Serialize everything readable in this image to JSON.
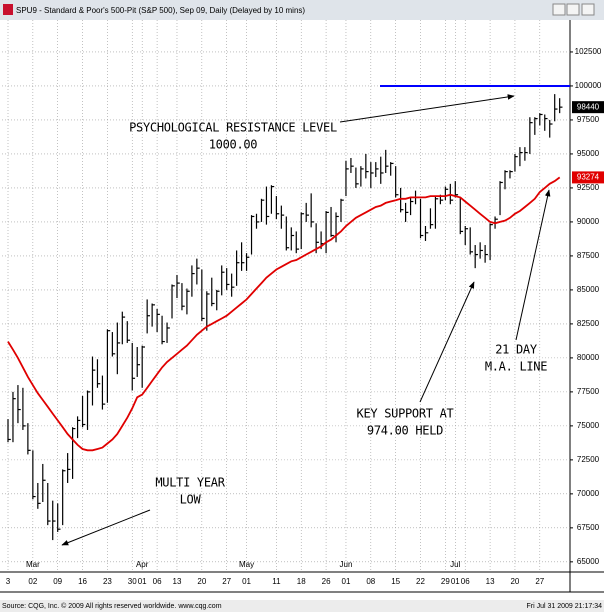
{
  "window_title": "SPU9 - Standard & Poor's 500-Pit (S&P 500), Sep 09, Daily (Delayed by 10 mins)",
  "footer": {
    "source": "Source: CQG, Inc. © 2009 All rights reserved worldwide. www.cqg.com",
    "timestamp": "Fri Jul 31 2009 21:17:34"
  },
  "chart_data": {
    "type": "ohlc",
    "categories": [
      "3",
      null,
      null,
      null,
      null,
      "02",
      null,
      null,
      null,
      null,
      "09",
      null,
      null,
      null,
      null,
      "16",
      null,
      null,
      null,
      null,
      "23",
      null,
      null,
      null,
      null,
      "30",
      null,
      "01",
      null,
      null,
      "06",
      null,
      null,
      null,
      "13",
      null,
      null,
      null,
      null,
      "20",
      null,
      null,
      null,
      null,
      "27",
      null,
      null,
      null,
      "01",
      null,
      null,
      null,
      null,
      null,
      "11",
      null,
      null,
      null,
      null,
      "18",
      null,
      null,
      null,
      null,
      "26",
      null,
      null,
      null,
      "01",
      null,
      null,
      null,
      null,
      "08",
      null,
      null,
      null,
      null,
      "15",
      null,
      null,
      null,
      null,
      "22",
      null,
      null,
      null,
      null,
      "29",
      null,
      "01",
      null,
      "06",
      null,
      null,
      null,
      null,
      "13",
      null,
      null,
      null,
      null,
      "20",
      null,
      null,
      null,
      null,
      "27",
      null,
      null,
      null,
      null
    ],
    "months": [
      null,
      null,
      null,
      null,
      null,
      "Mar",
      null,
      null,
      null,
      null,
      null,
      null,
      null,
      null,
      null,
      null,
      null,
      null,
      null,
      null,
      null,
      null,
      null,
      null,
      null,
      null,
      null,
      "Apr",
      null,
      null,
      null,
      null,
      null,
      null,
      null,
      null,
      null,
      null,
      null,
      null,
      null,
      null,
      null,
      null,
      null,
      null,
      null,
      null,
      "May",
      null,
      null,
      null,
      null,
      null,
      null,
      null,
      null,
      null,
      null,
      null,
      null,
      null,
      null,
      null,
      null,
      null,
      null,
      null,
      "Jun",
      null,
      null,
      null,
      null,
      null,
      null,
      null,
      null,
      null,
      null,
      null,
      null,
      null,
      null,
      null,
      null,
      null,
      null,
      null,
      null,
      null,
      "Jul",
      null,
      null,
      null,
      null,
      null,
      null,
      null,
      null,
      null,
      null,
      null,
      null,
      null,
      null,
      null,
      null,
      null,
      null,
      null,
      null,
      null
    ],
    "high": [
      75500,
      77500,
      78000,
      77800,
      75200,
      73200,
      70800,
      72200,
      70800,
      69500,
      69300,
      71800,
      73000,
      74900,
      75700,
      77200,
      77600,
      80100,
      79900,
      78700,
      82100,
      81900,
      82600,
      83400,
      82700,
      81100,
      80800,
      80900,
      84300,
      84000,
      83600,
      83100,
      82600,
      85400,
      86100,
      85500,
      85100,
      86800,
      87300,
      86500,
      84900,
      85900,
      85000,
      86800,
      86600,
      86200,
      87900,
      88500,
      87700,
      90500,
      90600,
      91700,
      92600,
      92700,
      91900,
      91200,
      90400,
      89600,
      89300,
      90700,
      91400,
      92100,
      89900,
      89300,
      90800,
      91100,
      90700,
      91700,
      94500,
      94700,
      94000,
      94100,
      95000,
      94400,
      94400,
      94800,
      95300,
      94400,
      94100,
      92500,
      91400,
      91800,
      92300,
      91700,
      89700,
      91000,
      91900,
      92000,
      92600,
      92800,
      93000,
      91800,
      89700,
      89600,
      88300,
      88500,
      88300,
      89900,
      90400,
      93000,
      93800,
      93800,
      95000,
      95500,
      95500,
      97700,
      97700,
      98000,
      97900,
      97500,
      99400,
      99100
    ],
    "low": [
      73800,
      73800,
      75200,
      74700,
      72900,
      69600,
      68900,
      69400,
      67700,
      66600,
      67200,
      67700,
      70800,
      71100,
      74100,
      74900,
      74700,
      76500,
      77800,
      76200,
      76700,
      80100,
      78800,
      81000,
      81100,
      77600,
      78600,
      77800,
      81800,
      82300,
      81900,
      81000,
      81100,
      82900,
      84400,
      83500,
      83200,
      84500,
      85400,
      82700,
      82000,
      83800,
      83500,
      84600,
      85000,
      84500,
      85300,
      86400,
      86400,
      87600,
      89500,
      90000,
      89800,
      90600,
      90200,
      89500,
      87900,
      87900,
      87700,
      88000,
      90000,
      89600,
      87700,
      88000,
      87700,
      88900,
      88500,
      90000,
      91900,
      93600,
      92500,
      92600,
      93200,
      92500,
      93300,
      92800,
      93600,
      93400,
      91800,
      90700,
      90000,
      90500,
      91300,
      88800,
      88600,
      89500,
      89500,
      91300,
      91600,
      91300,
      91800,
      89100,
      88300,
      87600,
      86600,
      87300,
      87000,
      87200,
      89500,
      90500,
      92400,
      93200,
      93700,
      94100,
      94500,
      95000,
      96400,
      97100,
      96700,
      96200,
      97400,
      98000
    ],
    "close": [
      74000,
      77000,
      76200,
      75000,
      73200,
      69800,
      69300,
      71000,
      68000,
      68000,
      67400,
      71700,
      71800,
      74800,
      75400,
      75100,
      77500,
      79100,
      78100,
      76600,
      82000,
      80300,
      81100,
      83000,
      81300,
      78500,
      79500,
      80800,
      83100,
      83900,
      83200,
      81200,
      82200,
      85300,
      85500,
      83800,
      84900,
      86200,
      86600,
      82900,
      84700,
      84000,
      84900,
      86300,
      85400,
      85200,
      87000,
      87000,
      87400,
      90400,
      90000,
      91600,
      90400,
      92600,
      90600,
      90500,
      88100,
      89000,
      88000,
      90600,
      90500,
      90000,
      88500,
      88400,
      90700,
      89000,
      90400,
      91600,
      93900,
      94100,
      92800,
      93900,
      93700,
      93600,
      93900,
      93600,
      94100,
      94300,
      92000,
      90900,
      90700,
      91500,
      91800,
      89000,
      89200,
      89800,
      91700,
      91600,
      92400,
      91600,
      92000,
      89300,
      89500,
      87800,
      87600,
      87900,
      87600,
      89800,
      90200,
      92900,
      93700,
      93700,
      94800,
      95100,
      95100,
      97300,
      97600,
      97900,
      97600,
      97200,
      98300,
      98440
    ],
    "color": "#000000",
    "moving_average": {
      "color": "#e00000",
      "values": [
        81200,
        80600,
        80000,
        79300,
        78600,
        78000,
        77400,
        76900,
        76400,
        75900,
        75400,
        74900,
        74400,
        74000,
        73600,
        73300,
        73200,
        73200,
        73300,
        73400,
        73700,
        74000,
        74400,
        75000,
        75600,
        76300,
        77100,
        77300,
        77800,
        78300,
        78800,
        79300,
        79700,
        80000,
        80300,
        80600,
        80900,
        81300,
        81700,
        82000,
        82300,
        82500,
        82700,
        82900,
        83100,
        83400,
        83700,
        84000,
        84300,
        84700,
        85100,
        85500,
        85900,
        86200,
        86500,
        86700,
        86900,
        87100,
        87200,
        87400,
        87600,
        87800,
        88000,
        88200,
        88500,
        88700,
        89000,
        89300,
        89700,
        90000,
        90300,
        90500,
        90700,
        90900,
        91100,
        91200,
        91400,
        91500,
        91600,
        91700,
        91700,
        91800,
        91800,
        91800,
        91800,
        91900,
        91900,
        91900,
        91900,
        92000,
        91900,
        91800,
        91500,
        91200,
        90900,
        90600,
        90300,
        90000,
        89900,
        90000,
        90100,
        90300,
        90600,
        90800,
        91100,
        91400,
        91700,
        92200,
        92500,
        92800,
        93000,
        93274
      ]
    },
    "resistance": {
      "value": 100000,
      "color": "#0000ff"
    },
    "ylim": [
      64400,
      104850
    ],
    "yticks": [
      65000,
      67500,
      70000,
      72500,
      75000,
      77500,
      80000,
      82500,
      85000,
      87500,
      90000,
      92500,
      95000,
      97500,
      100000,
      102500
    ],
    "grid": true,
    "annotations": [
      {
        "lines": [
          "PSYCHOLOGICAL RESISTANCE LEVEL",
          "1000.00"
        ]
      },
      {
        "lines": [
          "KEY SUPPORT AT",
          "974.00 HELD"
        ]
      },
      {
        "lines": [
          "21 DAY",
          "M.A. LINE"
        ]
      },
      {
        "lines": [
          "MULTI YEAR",
          "LOW"
        ]
      }
    ]
  }
}
